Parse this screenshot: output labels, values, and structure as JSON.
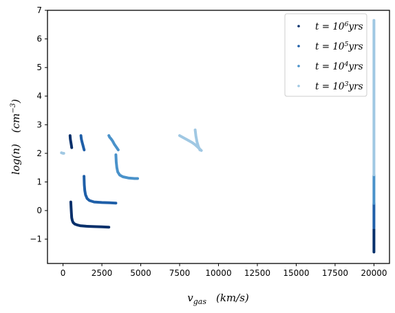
{
  "chart_data": {
    "type": "scatter",
    "xlim": [
      -1000,
      21000
    ],
    "ylim": [
      -1.85,
      7.0
    ],
    "xticks": [
      0,
      2500,
      5000,
      7500,
      10000,
      12500,
      15000,
      17500,
      20000
    ],
    "xtick_labels": [
      "0",
      "2500",
      "5000",
      "7500",
      "10000",
      "12500",
      "15000",
      "17500",
      "20000"
    ],
    "yticks": [
      -1,
      0,
      1,
      2,
      3,
      4,
      5,
      6,
      7
    ],
    "ytick_labels": [
      "−1",
      "0",
      "1",
      "2",
      "3",
      "4",
      "5",
      "6",
      "7"
    ],
    "xlabel": {
      "var": "v",
      "sub": "gas",
      "unit": "(km/s)"
    },
    "ylabel": {
      "text": "log(n)",
      "unit_base": "(cm",
      "unit_exp": "−3",
      "unit_close": ")"
    },
    "legend_position": "upper-right",
    "grid": false,
    "series": [
      {
        "name": {
          "pre": "t = 10",
          "exp": "6",
          "post": "yrs"
        },
        "color": "#08306b",
        "segments": [
          {
            "points": [
              [
                450,
                2.62
              ],
              [
                470,
                2.5
              ],
              [
                500,
                2.4
              ],
              [
                530,
                2.3
              ],
              [
                560,
                2.2
              ]
            ]
          },
          {
            "points": [
              [
                500,
                0.3
              ],
              [
                520,
                0.1
              ],
              [
                540,
                -0.1
              ],
              [
                560,
                -0.25
              ],
              [
                600,
                -0.35
              ],
              [
                650,
                -0.42
              ],
              [
                750,
                -0.47
              ],
              [
                900,
                -0.5
              ],
              [
                1100,
                -0.53
              ],
              [
                1500,
                -0.55
              ],
              [
                2000,
                -0.56
              ],
              [
                2500,
                -0.57
              ],
              [
                2950,
                -0.58
              ]
            ]
          },
          {
            "points": [
              [
                20000,
                -0.65
              ],
              [
                20000,
                -0.9
              ],
              [
                20000,
                -1.1
              ],
              [
                20000,
                -1.3
              ],
              [
                20000,
                -1.45
              ]
            ]
          }
        ]
      },
      {
        "name": {
          "pre": "t = 10",
          "exp": "5",
          "post": "yrs"
        },
        "color": "#1f5fa8",
        "segments": [
          {
            "points": [
              [
                1150,
                2.62
              ],
              [
                1180,
                2.5
              ],
              [
                1220,
                2.4
              ],
              [
                1270,
                2.3
              ],
              [
                1320,
                2.2
              ],
              [
                1360,
                2.12
              ]
            ]
          },
          {
            "points": [
              [
                1350,
                1.2
              ],
              [
                1370,
                0.9
              ],
              [
                1400,
                0.7
              ],
              [
                1450,
                0.55
              ],
              [
                1550,
                0.42
              ],
              [
                1700,
                0.35
              ],
              [
                2000,
                0.3
              ],
              [
                2500,
                0.28
              ],
              [
                3000,
                0.27
              ],
              [
                3400,
                0.26
              ]
            ]
          },
          {
            "points": [
              [
                20000,
                0.25
              ],
              [
                20000,
                0.0
              ],
              [
                20000,
                -0.3
              ],
              [
                20000,
                -0.6
              ]
            ]
          }
        ]
      },
      {
        "name": {
          "pre": "t = 10",
          "exp": "4",
          "post": "yrs"
        },
        "color": "#4a92ca",
        "segments": [
          {
            "points": [
              [
                2950,
                2.62
              ],
              [
                3000,
                2.56
              ],
              [
                3100,
                2.5
              ],
              [
                3200,
                2.42
              ],
              [
                3300,
                2.32
              ],
              [
                3400,
                2.24
              ],
              [
                3500,
                2.16
              ],
              [
                3550,
                2.12
              ]
            ]
          },
          {
            "points": [
              [
                3400,
                1.95
              ],
              [
                3420,
                1.7
              ],
              [
                3460,
                1.5
              ],
              [
                3520,
                1.35
              ],
              [
                3650,
                1.24
              ],
              [
                3850,
                1.18
              ],
              [
                4200,
                1.14
              ],
              [
                4600,
                1.12
              ],
              [
                4800,
                1.12
              ]
            ]
          },
          {
            "points": [
              [
                20000,
                1.25
              ],
              [
                20000,
                0.9
              ],
              [
                20000,
                0.6
              ],
              [
                20000,
                0.25
              ]
            ]
          }
        ]
      },
      {
        "name": {
          "pre": "t = 10",
          "exp": "3",
          "post": "yrs"
        },
        "color": "#a0c8e3",
        "segments": [
          {
            "points": [
              [
                -100,
                2.02
              ],
              [
                0,
                2.0
              ],
              [
                50,
                2.0
              ]
            ]
          },
          {
            "points": [
              [
                7500,
                2.62
              ],
              [
                7700,
                2.56
              ],
              [
                7900,
                2.5
              ],
              [
                8100,
                2.44
              ],
              [
                8300,
                2.38
              ],
              [
                8500,
                2.3
              ],
              [
                8700,
                2.2
              ],
              [
                8900,
                2.1
              ]
            ]
          },
          {
            "points": [
              [
                8500,
                2.82
              ],
              [
                8550,
                2.6
              ],
              [
                8620,
                2.4
              ],
              [
                8700,
                2.25
              ],
              [
                8800,
                2.12
              ]
            ]
          },
          {
            "points": [
              [
                20000,
                6.65
              ],
              [
                20000,
                5.5
              ],
              [
                20000,
                4.0
              ],
              [
                20000,
                2.5
              ],
              [
                20000,
                1.25
              ]
            ]
          }
        ]
      }
    ]
  }
}
